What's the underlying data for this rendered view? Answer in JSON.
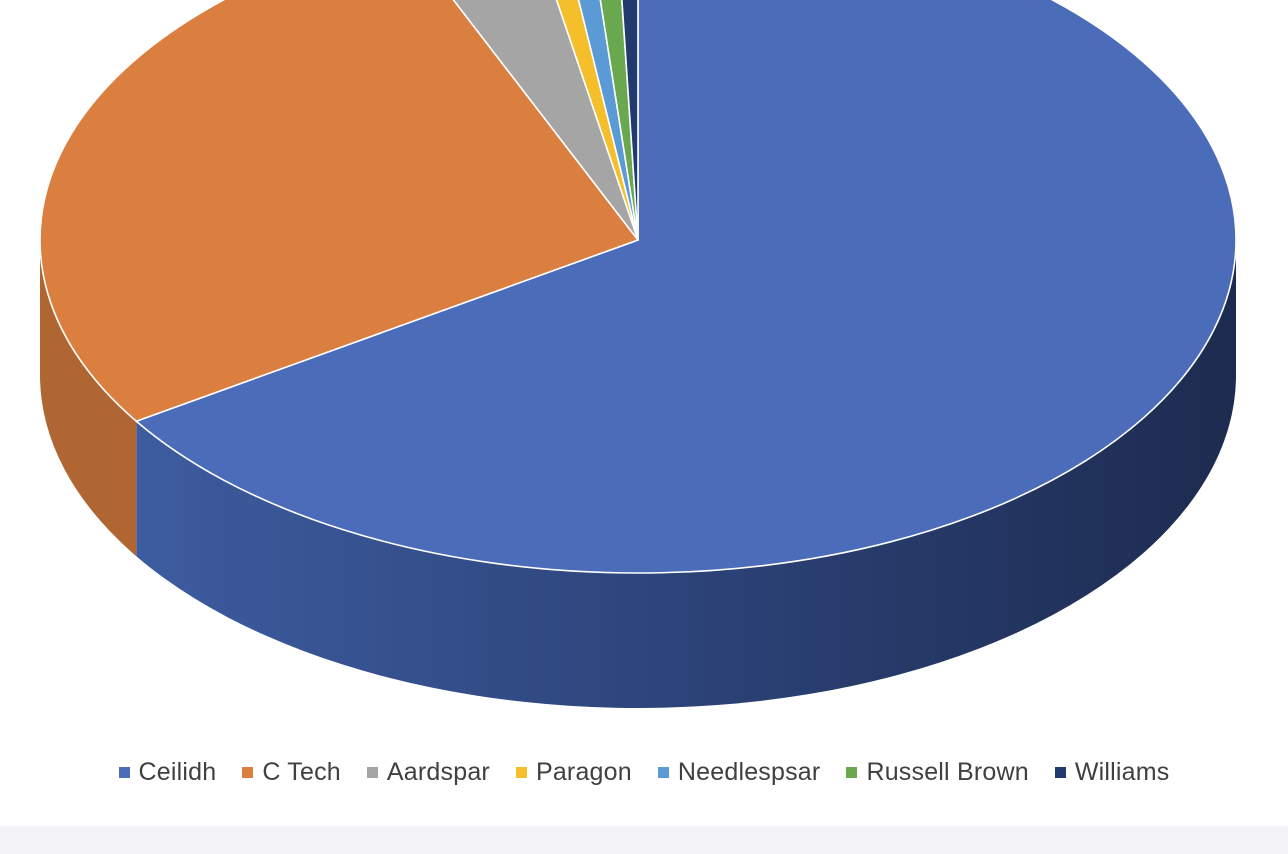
{
  "chart_data": {
    "type": "pie",
    "title": "",
    "categories": [
      "Ceilidh",
      "C Tech",
      "Aardspar",
      "Paragon",
      "Needlespsar",
      "Russell Brown",
      "Williams"
    ],
    "values": [
      66.5,
      28.0,
      3.5,
      0.8,
      0.8,
      0.8,
      0.6
    ],
    "colors": [
      "#4a6cb9",
      "#db7f40",
      "#a5a5a5",
      "#f4bf2b",
      "#5b9bd5",
      "#6aa84f",
      "#223b6e"
    ],
    "legend_placement": "bottom",
    "style": "3d"
  }
}
